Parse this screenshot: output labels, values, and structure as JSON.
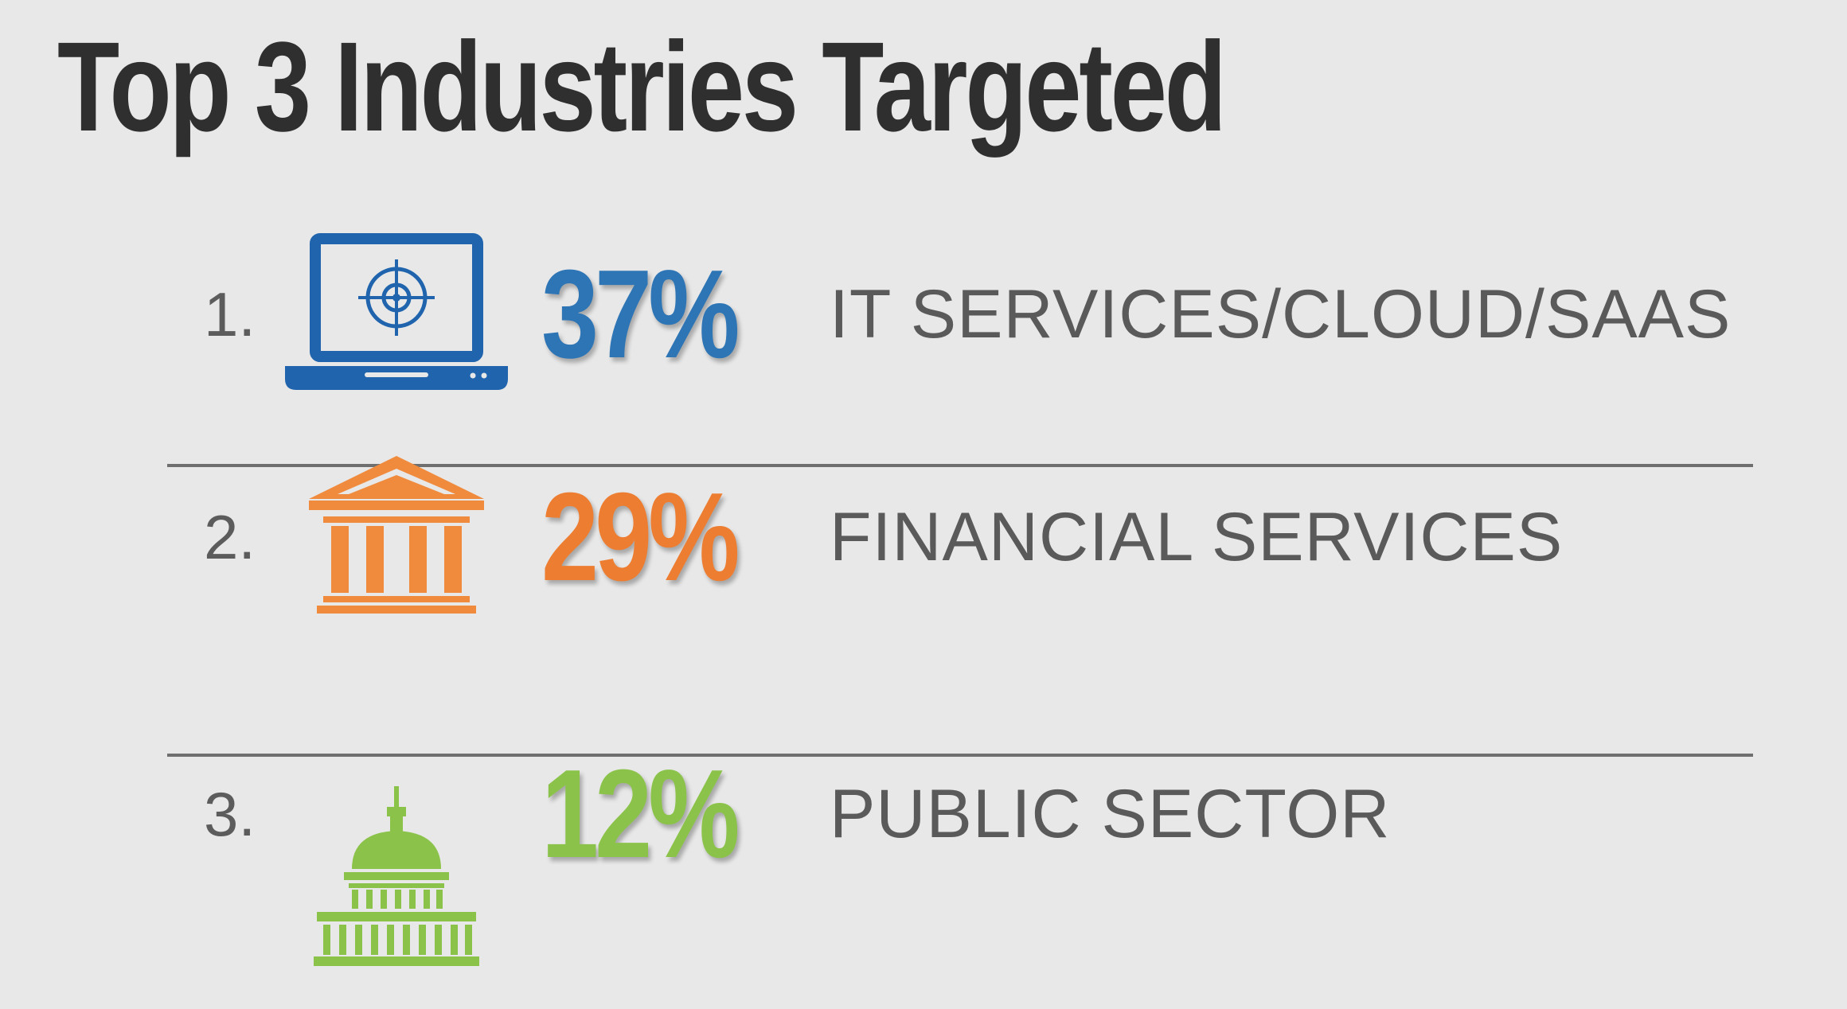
{
  "title": "Top 3 Industries Targeted",
  "colors": {
    "it": "#2e75b6",
    "finance": "#ed7d31",
    "public": "#8bc34a",
    "text": "#5a5a5a",
    "title": "#2f2f2f",
    "background": "#e8e8e8"
  },
  "rows": [
    {
      "rank": "1.",
      "percent": "37%",
      "label": "IT SERVICES/CLOUD/SAAS",
      "icon": "laptop-target-icon"
    },
    {
      "rank": "2.",
      "percent": "29%",
      "label": "FINANCIAL SERVICES",
      "icon": "bank-building-icon"
    },
    {
      "rank": "3.",
      "percent": "12%",
      "label": "PUBLIC SECTOR",
      "icon": "capitol-dome-icon"
    }
  ],
  "chart_data": {
    "type": "table",
    "title": "Top 3 Industries Targeted",
    "columns": [
      "rank",
      "percent",
      "industry"
    ],
    "categories": [
      "IT SERVICES/CLOUD/SAAS",
      "FINANCIAL SERVICES",
      "PUBLIC SECTOR"
    ],
    "values": [
      37,
      29,
      12
    ],
    "unit": "%"
  }
}
